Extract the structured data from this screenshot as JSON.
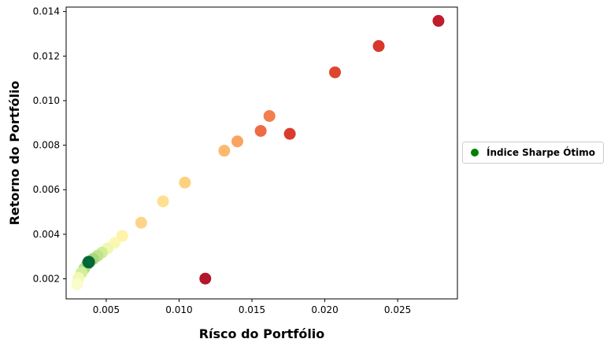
{
  "chart_data": {
    "type": "scatter",
    "xlabel": "Rísco do Portfólio",
    "ylabel": "Retorno do Portfólio",
    "xlim": [
      0.00225,
      0.0291
    ],
    "ylim": [
      0.0011,
      0.0142
    ],
    "xticks": [
      0.005,
      0.01,
      0.015,
      0.02,
      0.025
    ],
    "xtick_labels": [
      "0.005",
      "0.010",
      "0.015",
      "0.020",
      "0.025"
    ],
    "yticks": [
      0.002,
      0.004,
      0.006,
      0.008,
      0.01,
      0.012,
      0.014
    ],
    "ytick_labels": [
      "0.002",
      "0.004",
      "0.006",
      "0.008",
      "0.010",
      "0.012",
      "0.014"
    ],
    "grid": false,
    "legend_position": "outside-right",
    "colormap": "RdYlGn",
    "points": [
      {
        "x": 0.0278,
        "y": 0.01358,
        "color": "#bf1c2c"
      },
      {
        "x": 0.0237,
        "y": 0.01245,
        "color": "#d9362c"
      },
      {
        "x": 0.0207,
        "y": 0.01127,
        "color": "#df4630"
      },
      {
        "x": 0.0176,
        "y": 0.00851,
        "color": "#d93c2e"
      },
      {
        "x": 0.0162,
        "y": 0.00931,
        "color": "#f37e4d"
      },
      {
        "x": 0.0156,
        "y": 0.00864,
        "color": "#ee6b45"
      },
      {
        "x": 0.014,
        "y": 0.00817,
        "color": "#fba360"
      },
      {
        "x": 0.0131,
        "y": 0.00775,
        "color": "#fdba6f"
      },
      {
        "x": 0.0118,
        "y": 0.00201,
        "color": "#b3172a"
      },
      {
        "x": 0.0104,
        "y": 0.00632,
        "color": "#fdd17f"
      },
      {
        "x": 0.0089,
        "y": 0.00548,
        "color": "#fee090"
      },
      {
        "x": 0.0074,
        "y": 0.00452,
        "color": "#fed48a"
      },
      {
        "x": 0.0061,
        "y": 0.00393,
        "color": "#fff2aa"
      },
      {
        "x": 0.0056,
        "y": 0.00362,
        "color": "#fbf8b4"
      },
      {
        "x": 0.0051,
        "y": 0.00337,
        "color": "#eef8b0"
      },
      {
        "x": 0.0047,
        "y": 0.00318,
        "color": "#d2ec98"
      },
      {
        "x": 0.0044,
        "y": 0.00303,
        "color": "#bfe38a"
      },
      {
        "x": 0.0041,
        "y": 0.00289,
        "color": "#a7d87e"
      },
      {
        "x": 0.0037,
        "y": 0.00266,
        "color": "#8ccb76"
      },
      {
        "x": 0.0035,
        "y": 0.00247,
        "color": "#b2de88"
      },
      {
        "x": 0.0033,
        "y": 0.00227,
        "color": "#d4ed9a"
      },
      {
        "x": 0.0031,
        "y": 0.00204,
        "color": "#f1f9b5"
      },
      {
        "x": 0.003,
        "y": 0.00175,
        "color": "#fbfccb"
      }
    ],
    "optimal_point": {
      "x": 0.0038,
      "y": 0.00275,
      "color": "#006837"
    },
    "legend": [
      {
        "label": "Índice Sharpe Ótimo",
        "color": "#008000"
      }
    ]
  }
}
